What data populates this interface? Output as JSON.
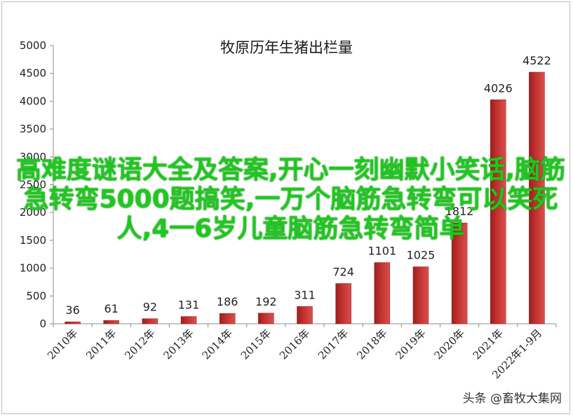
{
  "chart_data": {
    "type": "bar",
    "title": "牧原历年生猪出栏量",
    "categories": [
      "2010年",
      "2011年",
      "2012年",
      "2013年",
      "2014年",
      "2015年",
      "2016年",
      "2017年",
      "2018年",
      "2019年",
      "2020年",
      "2021年",
      "2022年1-9月"
    ],
    "values": [
      36,
      61,
      92,
      131,
      186,
      192,
      311,
      724,
      1101,
      1025,
      1812,
      4026,
      4522
    ],
    "data_labels": [
      "36",
      "61",
      "92",
      "131",
      "186",
      "192",
      "311",
      "724",
      "1101",
      "1025",
      "1812",
      "4026",
      "4522"
    ],
    "ylim": [
      0,
      5000
    ],
    "yticks": [
      "0",
      "500",
      "1000",
      "1500",
      "2000",
      "2500",
      "3000",
      "3500",
      "4000",
      "4500",
      "5000"
    ],
    "ytick_values": [
      0,
      500,
      1000,
      1500,
      2000,
      2500,
      3000,
      3500,
      4000,
      4500,
      5000
    ],
    "grid": false,
    "bar_color": "#c0302e",
    "legend": "none"
  },
  "overlay_text": "高难度谜语大全及答案,开心一刻幽默小笑话,脑筋急转弯5000题搞笑,一万个脑筋急转弯可以笑死人,4一6岁儿童脑筋急转弯简单",
  "overlay_color": "#1ec81e",
  "watermark": "头条 @畜牧大集网"
}
